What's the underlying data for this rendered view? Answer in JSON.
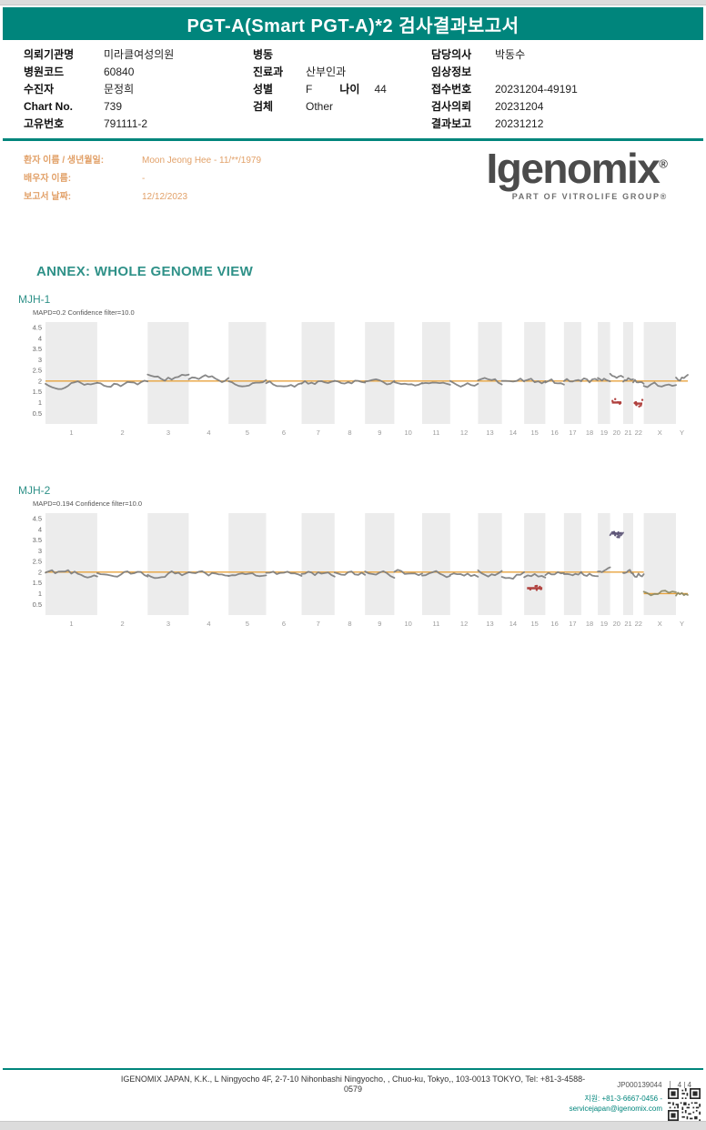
{
  "colors": {
    "teal": "#00857C",
    "accent_orange": "#E2A169",
    "baseline_orange": "#E8A33D",
    "data_gray": "#7B7B7B",
    "loss_red": "#B0413E",
    "gain_purple": "#5E5678"
  },
  "header": {
    "title": "PGT-A(Smart PGT-A)*2 검사결과보고서"
  },
  "info": {
    "col1": [
      {
        "label": "의뢰기관명",
        "value": "미라클여성의원"
      },
      {
        "label": "병원코드",
        "value": "60840"
      },
      {
        "label": "수진자",
        "value": "문정희"
      },
      {
        "label": "Chart No.",
        "value": "739"
      },
      {
        "label": "고유번호",
        "value": "791111-2"
      }
    ],
    "col2": [
      {
        "label": "병동",
        "value": ""
      },
      {
        "label": "진료과",
        "value": "산부인과"
      },
      {
        "label": "성별",
        "value": "F",
        "label2": "나이",
        "value2": "44"
      },
      {
        "label": "검체",
        "value": "Other"
      }
    ],
    "col3": [
      {
        "label": "담당의사",
        "value": "박동수"
      },
      {
        "label": "임상정보",
        "value": ""
      },
      {
        "label": "접수번호",
        "value": "20231204-49191"
      },
      {
        "label": "검사의뢰",
        "value": "20231204"
      },
      {
        "label": "결과보고",
        "value": "20231212"
      }
    ]
  },
  "patient": {
    "rows": [
      {
        "label": "환자 이름 / 생년월일:",
        "value": "Moon Jeong Hee - 11/**/1979"
      },
      {
        "label": "배우자 이름:",
        "value": "-"
      },
      {
        "label": "보고서 날짜:",
        "value": "12/12/2023"
      }
    ]
  },
  "logo": {
    "name": "Igenomix",
    "registered": "®",
    "tagline": "PART OF VITROLIFE GROUP®"
  },
  "annex_title": "ANNEX: WHOLE GENOME VIEW",
  "chart_data": [
    {
      "type": "scatter",
      "title": "MJH-1",
      "subtitle": "MAPD=0.2 Confidence filter=10.0",
      "ylim": [
        0,
        4.75
      ],
      "yticks": [
        4.5,
        4,
        3.5,
        3,
        2.5,
        2,
        1.5,
        1,
        0.5
      ],
      "chromosomes": [
        "1",
        "2",
        "3",
        "4",
        "5",
        "6",
        "7",
        "8",
        "9",
        "10",
        "11",
        "12",
        "13",
        "14",
        "15",
        "16",
        "17",
        "18",
        "19",
        "20",
        "21",
        "22",
        "X",
        "Y"
      ],
      "values": [
        1.9,
        1.9,
        2.2,
        2.1,
        1.9,
        1.85,
        1.95,
        1.95,
        1.9,
        1.95,
        1.95,
        1.9,
        1.95,
        2.05,
        1.95,
        1.9,
        1.95,
        2.0,
        2.15,
        2.3,
        2.0,
        1.95,
        1.8,
        2.15
      ],
      "baselines": [
        {
          "from": "1",
          "to": "Y",
          "value": 2
        }
      ],
      "segments": [
        {
          "chrom": "20",
          "value": 1.0,
          "color": "#B0413E"
        },
        {
          "chrom": "22",
          "value": 0.95,
          "color": "#B0413E"
        }
      ]
    },
    {
      "type": "scatter",
      "title": "MJH-2",
      "subtitle": "MAPD=0.194 Confidence filter=10.0",
      "ylim": [
        0,
        4.75
      ],
      "yticks": [
        4.5,
        4,
        3.5,
        3,
        2.5,
        2,
        1.5,
        1,
        0.5
      ],
      "chromosomes": [
        "1",
        "2",
        "3",
        "4",
        "5",
        "6",
        "7",
        "8",
        "9",
        "10",
        "11",
        "12",
        "13",
        "14",
        "15",
        "16",
        "17",
        "18",
        "19",
        "20",
        "21",
        "22",
        "X",
        "Y"
      ],
      "values": [
        1.95,
        1.9,
        1.95,
        1.9,
        1.9,
        1.95,
        1.9,
        1.95,
        1.9,
        1.95,
        1.9,
        1.9,
        1.95,
        1.9,
        1.85,
        1.9,
        1.95,
        1.9,
        2.1,
        3.8,
        1.95,
        1.9,
        1.05,
        0.95
      ],
      "point_colors": {
        "20": "#5E5678",
        "X": "#8A8660",
        "Y": "#8A8660"
      },
      "baselines": [
        {
          "from": "1",
          "to": "22",
          "value": 2
        },
        {
          "from": "X",
          "to": "Y",
          "value": 1
        }
      ],
      "segments": [
        {
          "chrom": "15",
          "value": 1.25,
          "color": "#B0413E"
        },
        {
          "chrom": "20",
          "value": 3.8,
          "color": "#5E5678"
        }
      ]
    }
  ],
  "footer": {
    "address": "IGENOMIX JAPAN, K.K., L Ningyocho 4F, 2-7-10 Nihonbashi Ningyocho, , Chuo-ku, Tokyo,, 103-0013 TOKYO, Tel: +81-3-4588-0579",
    "doc_id": "JP000139044",
    "page": "4 | 4",
    "support": "지원: +81-3-6667-0456 - servicejapan@igenomix.com"
  }
}
